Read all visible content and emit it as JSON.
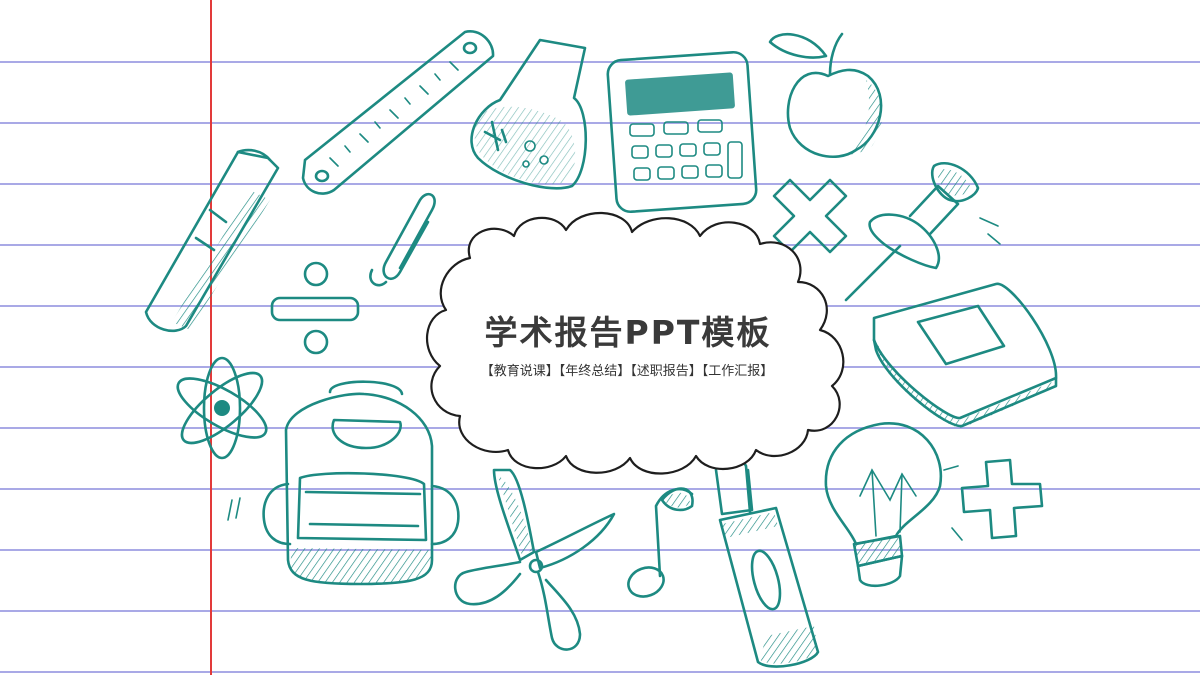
{
  "slide": {
    "title": "学术报告PPT模板",
    "subtitle": "【教育说课】【年终总结】【述职报告】【工作汇报】"
  },
  "colors": {
    "ink": "#1d8a82",
    "margin_line": "#e23a3a",
    "ruled_line": "#a9a9e6",
    "text": "#3a3a3a"
  },
  "doodles": {
    "items": [
      "pencil-icon",
      "ruler-icon",
      "flask-icon",
      "calculator-icon",
      "apple-icon",
      "paperclip-icon",
      "divide-icon",
      "multiply-icon",
      "pushpin-icon",
      "book-icon",
      "atom-icon",
      "backpack-icon",
      "scissors-icon",
      "music-note-icon",
      "crayon-icon",
      "lightbulb-icon",
      "plus-icon"
    ]
  }
}
